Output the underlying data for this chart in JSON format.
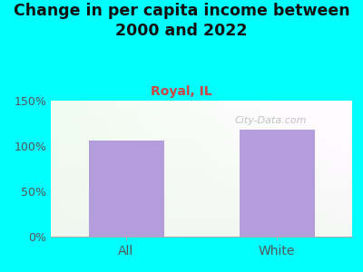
{
  "title": "Change in per capita income between\n2000 and 2022",
  "subtitle": "Royal, IL",
  "categories": [
    "All",
    "White"
  ],
  "values": [
    106,
    118
  ],
  "bar_color": "#b39ddb",
  "title_fontsize": 12.5,
  "subtitle_fontsize": 10,
  "subtitle_color": "#cc4444",
  "title_color": "#111111",
  "background_outer": "#00ffff",
  "axis_label_color": "#555555",
  "tick_color": "#555555",
  "ylim": [
    0,
    150
  ],
  "yticks": [
    0,
    50,
    100,
    150
  ],
  "ytick_labels": [
    "0%",
    "50%",
    "100%",
    "150%"
  ],
  "watermark": "City-Data.com",
  "grad_top": "#f0faf0",
  "grad_bottom": "#e0f5e0",
  "grad_topleft": "#f5fff5",
  "grad_topright": "#ffffff"
}
